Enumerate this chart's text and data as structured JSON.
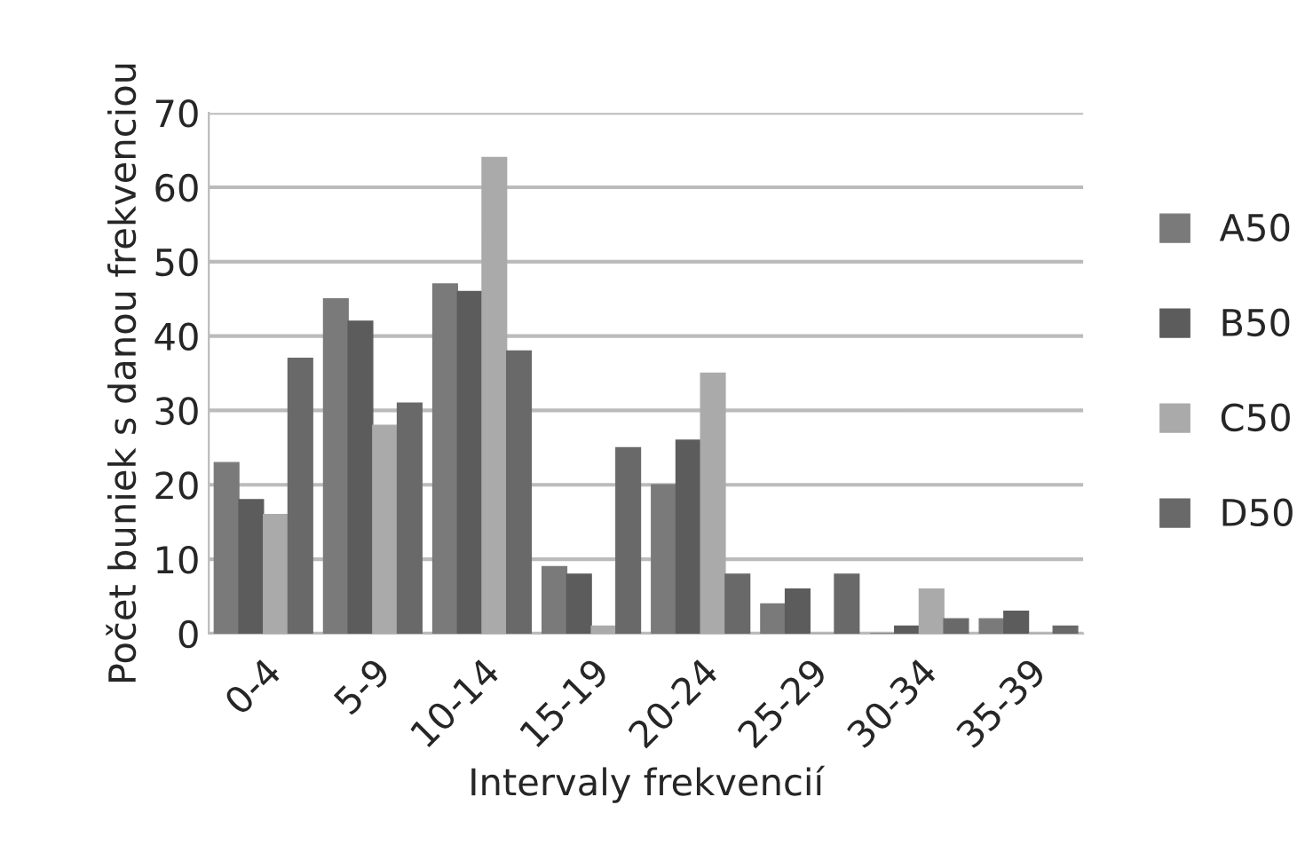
{
  "chart_data": {
    "type": "bar",
    "xlabel": "Intervaly frekvencií",
    "ylabel": "Počet buniek s danou frekvenciou",
    "categories": [
      "0-4",
      "5-9",
      "10-14",
      "15-19",
      "20-24",
      "25-29",
      "30-34",
      "35-39"
    ],
    "series": [
      {
        "name": "A50",
        "color": "#7a7a7a",
        "values": [
          23,
          45,
          47,
          9,
          20,
          4,
          0,
          2
        ]
      },
      {
        "name": "B50",
        "color": "#5c5c5c",
        "values": [
          18,
          42,
          46,
          8,
          26,
          6,
          1,
          3
        ]
      },
      {
        "name": "C50",
        "color": "#aaaaaa",
        "values": [
          16,
          28,
          64,
          1,
          35,
          0,
          6,
          0
        ]
      },
      {
        "name": "D50",
        "color": "#696969",
        "values": [
          37,
          31,
          38,
          25,
          8,
          8,
          2,
          1
        ]
      }
    ],
    "ylim": [
      0,
      70
    ],
    "yticks": [
      0,
      10,
      20,
      30,
      40,
      50,
      60,
      70
    ],
    "grid": "y",
    "legend": "right"
  }
}
